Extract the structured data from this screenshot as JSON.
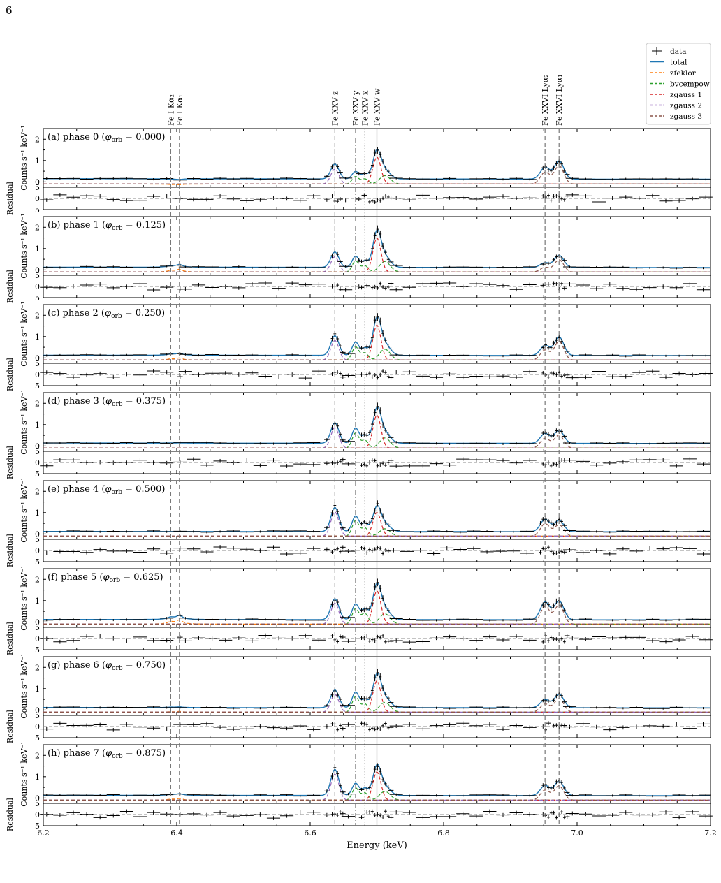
{
  "page_number": "6",
  "colors": {
    "total": "#1f77b4",
    "zfeklor": "#ff7f0e",
    "bvcempow": "#2ca02c",
    "zgauss_1": "#d62728",
    "zgauss_2": "#9467bd",
    "zgauss_3": "#8c564b",
    "data": "#000000",
    "line_markers": "#777777"
  },
  "chart_data": {
    "type": "line",
    "xlabel": "Energy (keV)",
    "xlim": [
      6.2,
      7.2
    ],
    "x_ticks": [
      "6.2",
      "6.4",
      "6.6",
      "6.8",
      "7.0",
      "7.2"
    ],
    "main_ylabel": "Counts s⁻¹ keV⁻¹",
    "main_ylim": [
      -0.25,
      2.5
    ],
    "main_y_ticks": [
      "0",
      "1",
      "2"
    ],
    "residual_ylabel": "Residual",
    "residual_ylim": [
      -5,
      5
    ],
    "residual_y_ticks": [
      "5",
      "0",
      "−5"
    ],
    "legend": {
      "placement": "top-right",
      "entries": [
        {
          "label": "data",
          "style": "errorbar",
          "color": "#000000"
        },
        {
          "label": "total",
          "style": "solid",
          "color": "#1f77b4"
        },
        {
          "label": "zfeklor",
          "style": "dashed",
          "color": "#ff7f0e"
        },
        {
          "label": "bvcempow",
          "style": "dashed",
          "color": "#2ca02c"
        },
        {
          "label": "zgauss 1",
          "style": "dashed",
          "color": "#d62728"
        },
        {
          "label": "zgauss 2",
          "style": "dashed",
          "color": "#9467bd"
        },
        {
          "label": "zgauss 3",
          "style": "dashed",
          "color": "#8c564b"
        }
      ]
    },
    "line_markers": [
      {
        "energy": 6.391,
        "label": "Fe I Kα₂",
        "style": "dashed"
      },
      {
        "energy": 6.404,
        "label": "Fe I Kα₁",
        "style": "dashed"
      },
      {
        "energy": 6.637,
        "label": "Fe XXV z",
        "style": "dashed"
      },
      {
        "energy": 6.668,
        "label": "Fe XXV y",
        "style": "dashdot"
      },
      {
        "energy": 6.682,
        "label": "Fe XXV x",
        "style": "dotted"
      },
      {
        "energy": 6.7,
        "label": "Fe XXV w",
        "style": "solid"
      },
      {
        "energy": 6.952,
        "label": "Fe XXVI Lyα₂",
        "style": "dashed"
      },
      {
        "energy": 6.973,
        "label": "Fe XXVI Lyα₁",
        "style": "dashed"
      }
    ],
    "panels": [
      {
        "label": "(a) phase 0",
        "phase": "0.000",
        "continuum": 0.15,
        "peaks": {
          "kalpha": 0.12,
          "z": 0.85,
          "y": 0.5,
          "x": 0.45,
          "w": 1.55,
          "ly2": 0.7,
          "ly1": 1.0
        }
      },
      {
        "label": "(b) phase 1",
        "phase": "0.125",
        "continuum": 0.13,
        "peaks": {
          "kalpha": 0.25,
          "z": 0.85,
          "y": 0.65,
          "x": 0.5,
          "w": 1.9,
          "ly2": 0.35,
          "ly1": 0.7
        }
      },
      {
        "label": "(c) phase 2",
        "phase": "0.250",
        "continuum": 0.13,
        "peaks": {
          "kalpha": 0.22,
          "z": 1.05,
          "y": 0.75,
          "x": 0.55,
          "w": 1.95,
          "ly2": 0.6,
          "ly1": 1.0
        }
      },
      {
        "label": "(d) phase 3",
        "phase": "0.375",
        "continuum": 0.14,
        "peaks": {
          "kalpha": 0.15,
          "z": 1.1,
          "y": 0.85,
          "x": 0.6,
          "w": 1.85,
          "ly2": 0.6,
          "ly1": 0.75
        }
      },
      {
        "label": "(e) phase 4",
        "phase": "0.500",
        "continuum": 0.12,
        "peaks": {
          "kalpha": 0.12,
          "z": 1.25,
          "y": 0.85,
          "x": 0.6,
          "w": 1.35,
          "ly2": 0.7,
          "ly1": 0.65
        }
      },
      {
        "label": "(f) phase 5",
        "phase": "0.625",
        "continuum": 0.12,
        "peaks": {
          "kalpha": 0.3,
          "z": 1.1,
          "y": 0.85,
          "x": 0.75,
          "w": 1.85,
          "ly2": 0.95,
          "ly1": 1.0
        }
      },
      {
        "label": "(g) phase 6",
        "phase": "0.750",
        "continuum": 0.12,
        "peaks": {
          "kalpha": 0.15,
          "z": 0.95,
          "y": 0.85,
          "x": 0.6,
          "w": 1.75,
          "ly2": 0.5,
          "ly1": 0.75
        }
      },
      {
        "label": "(h) phase 7",
        "phase": "0.875",
        "continuum": 0.13,
        "peaks": {
          "kalpha": 0.2,
          "z": 1.35,
          "y": 0.7,
          "x": 0.55,
          "w": 1.6,
          "ly2": 0.6,
          "ly1": 0.8
        }
      }
    ]
  }
}
